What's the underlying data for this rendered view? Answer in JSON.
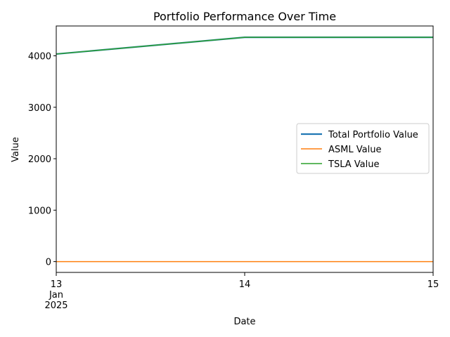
{
  "chart_data": {
    "type": "line",
    "title": "Portfolio Performance Over Time",
    "xlabel": "Date",
    "ylabel": "Value",
    "x": [
      "2025-01-13",
      "2025-01-14",
      "2025-01-15"
    ],
    "xtick_labels": [
      {
        "day": "13",
        "month": "Jan",
        "year": "2025"
      },
      {
        "day": "14",
        "month": "",
        "year": ""
      },
      {
        "day": "15",
        "month": "",
        "year": ""
      }
    ],
    "xlim": [
      "2025-01-13",
      "2025-01-15"
    ],
    "ylim": [
      -210,
      4580
    ],
    "yticks": [
      0,
      1000,
      2000,
      3000,
      4000
    ],
    "series": [
      {
        "name": "Total Portfolio Value",
        "values": [
          4035,
          4360,
          4360
        ],
        "color": "#1f77b4"
      },
      {
        "name": "ASML Value",
        "values": [
          0,
          0,
          0
        ],
        "color": "#ff7f0e"
      },
      {
        "name": "TSLA Value",
        "values": [
          4035,
          4360,
          4360
        ],
        "color": "#2ca02c"
      }
    ],
    "grid": false,
    "legend_position": "center-right"
  }
}
